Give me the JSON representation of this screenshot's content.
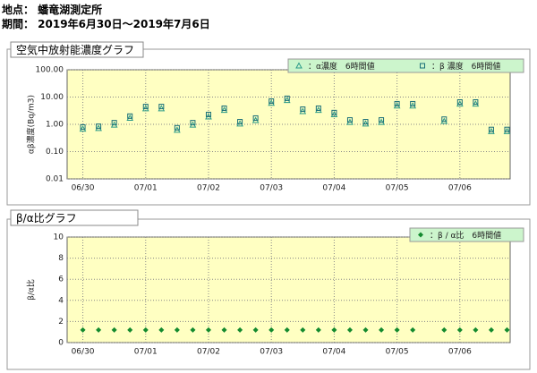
{
  "header": {
    "location": "地点： 蟠竜湖測定所",
    "period": "期間： 2019年6月30日～2019年7月6日"
  },
  "chart_data": [
    {
      "type": "scatter",
      "title": "空気中放射能濃度グラフ",
      "y_label": "αβ濃度(Bq/m3)",
      "log_scale": true,
      "grid": true,
      "legend": "top-right",
      "x": [
        0,
        0.25,
        0.5,
        0.75,
        1,
        1.25,
        1.5,
        1.75,
        2,
        2.25,
        2.5,
        2.75,
        3,
        3.25,
        3.5,
        3.75,
        4,
        4.25,
        4.5,
        4.75,
        5,
        5.25,
        5.5,
        5.75,
        6,
        6.25,
        6.5,
        6.75
      ],
      "xlim": [
        -0.25,
        6.8
      ],
      "xticks": [
        {
          "value": 0,
          "label": "06/30"
        },
        {
          "value": 1,
          "label": "07/01"
        },
        {
          "value": 2,
          "label": "07/02"
        },
        {
          "value": 3,
          "label": "07/03"
        },
        {
          "value": 4,
          "label": "07/04"
        },
        {
          "value": 5,
          "label": "07/05"
        },
        {
          "value": 6,
          "label": "07/06"
        }
      ],
      "ylim": [
        0.01,
        100
      ],
      "yticks": [
        {
          "value": 0.01,
          "label": "0.01"
        },
        {
          "value": 0.1,
          "label": "0.10"
        },
        {
          "value": 1,
          "label": "1.00"
        },
        {
          "value": 10,
          "label": "10.00"
        },
        {
          "value": 100,
          "label": "100.00"
        }
      ],
      "series": [
        {
          "name": "：α濃度　6時間値",
          "color": "#2a9a88",
          "marker": "triangle",
          "values": [
            0.68,
            0.72,
            0.95,
            1.7,
            3.8,
            3.8,
            0.62,
            0.95,
            1.9,
            3.3,
            1.05,
            1.4,
            6.0,
            7.6,
            3.0,
            3.3,
            2.3,
            1.2,
            1.05,
            1.2,
            4.8,
            4.8,
            null,
            1.3,
            5.6,
            5.6,
            0.55,
            0.55
          ]
        },
        {
          "name": "：β 濃度　6時間値",
          "color": "#1a6f78",
          "marker": "square",
          "values": [
            0.8,
            0.85,
            1.15,
            2.0,
            4.5,
            4.5,
            0.75,
            1.15,
            2.3,
            3.9,
            1.25,
            1.7,
            7.1,
            9.0,
            3.6,
            3.9,
            2.7,
            1.45,
            1.25,
            1.45,
            5.7,
            5.7,
            null,
            1.55,
            6.6,
            6.6,
            0.65,
            0.65
          ]
        }
      ]
    },
    {
      "type": "scatter",
      "title": "β/α比グラフ",
      "y_label": "β/α比",
      "log_scale": false,
      "grid": true,
      "legend": "top-right",
      "x": [
        0,
        0.25,
        0.5,
        0.75,
        1,
        1.25,
        1.5,
        1.75,
        2,
        2.25,
        2.5,
        2.75,
        3,
        3.25,
        3.5,
        3.75,
        4,
        4.25,
        4.5,
        4.75,
        5,
        5.25,
        5.5,
        5.75,
        6,
        6.25,
        6.5,
        6.75
      ],
      "xlim": [
        -0.25,
        6.8
      ],
      "xticks": [
        {
          "value": 0,
          "label": "06/30"
        },
        {
          "value": 1,
          "label": "07/01"
        },
        {
          "value": 2,
          "label": "07/02"
        },
        {
          "value": 3,
          "label": "07/03"
        },
        {
          "value": 4,
          "label": "07/04"
        },
        {
          "value": 5,
          "label": "07/05"
        },
        {
          "value": 6,
          "label": "07/06"
        }
      ],
      "ylim": [
        0,
        10
      ],
      "yticks": [
        0,
        2,
        4,
        6,
        8,
        10
      ],
      "series": [
        {
          "name": "：β / α比　6時間値",
          "color": "#138a2e",
          "marker": "diamond",
          "values": [
            1.2,
            1.2,
            1.2,
            1.2,
            1.2,
            1.2,
            1.2,
            1.2,
            1.2,
            1.2,
            1.2,
            1.2,
            1.2,
            1.2,
            1.2,
            1.2,
            1.2,
            1.2,
            1.2,
            1.2,
            1.2,
            1.2,
            null,
            1.2,
            1.2,
            1.2,
            1.2,
            1.2
          ]
        }
      ]
    }
  ]
}
